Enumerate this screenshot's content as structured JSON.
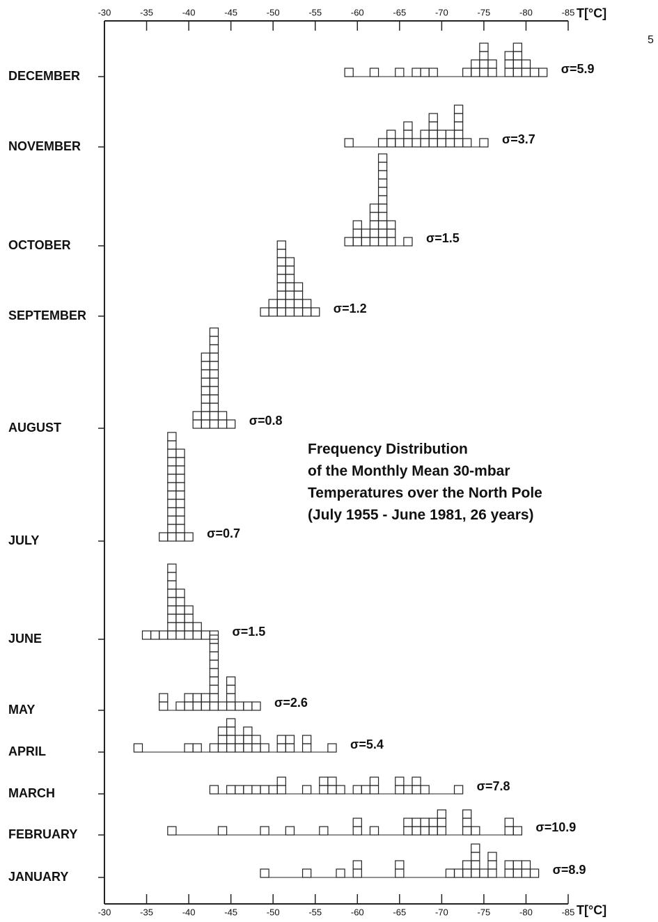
{
  "page_number": "5",
  "chart_data": {
    "type": "frequency-squares",
    "title": [
      "Frequency Distribution",
      "of the Monthly Mean 30-mbar",
      "Temperatures over the North Pole",
      "(July 1955 - June 1981, 26 years)"
    ],
    "x_label": "T[°C]",
    "xlim": [
      -30,
      -85
    ],
    "xticks": [
      -30,
      -35,
      -40,
      -45,
      -50,
      -55,
      -60,
      -65,
      -70,
      -75,
      -80,
      -85
    ],
    "color": "#222222",
    "series": [
      {
        "name": "DECEMBER",
        "sigma_label": "σ=5.9",
        "x": [
          -59,
          -62,
          -65,
          -67,
          -68,
          -69,
          -73,
          -74,
          -75,
          -76,
          -78,
          -79,
          -80,
          -81,
          -82
        ],
        "values": [
          1,
          1,
          1,
          1,
          1,
          1,
          1,
          2,
          4,
          2,
          3,
          4,
          2,
          1,
          1
        ]
      },
      {
        "name": "NOVEMBER",
        "sigma_label": "σ=3.7",
        "x": [
          -59,
          -63,
          -64,
          -65,
          -66,
          -67,
          -68,
          -69,
          -70,
          -71,
          -72,
          -73,
          -75
        ],
        "values": [
          1,
          1,
          2,
          1,
          3,
          1,
          2,
          4,
          2,
          2,
          5,
          1,
          1
        ]
      },
      {
        "name": "OCTOBER",
        "sigma_label": "σ=1.5",
        "x": [
          -59,
          -60,
          -61,
          -62,
          -63,
          -64,
          -66
        ],
        "values": [
          1,
          3,
          2,
          5,
          11,
          3,
          1
        ]
      },
      {
        "name": "SEPTEMBER",
        "sigma_label": "σ=1.2",
        "x": [
          -49,
          -50,
          -51,
          -52,
          -53,
          -54,
          -55
        ],
        "values": [
          1,
          2,
          9,
          7,
          4,
          2,
          1
        ]
      },
      {
        "name": "AUGUST",
        "sigma_label": "σ=0.8",
        "x": [
          -41,
          -42,
          -43,
          -44,
          -45
        ],
        "values": [
          2,
          9,
          12,
          2,
          1
        ]
      },
      {
        "name": "JULY",
        "sigma_label": "σ=0.7",
        "x": [
          -37,
          -38,
          -39,
          -40
        ],
        "values": [
          1,
          13,
          11,
          1
        ]
      },
      {
        "name": "JUNE",
        "sigma_label": "σ=1.5",
        "x": [
          -35,
          -36,
          -37,
          -38,
          -39,
          -40,
          -41,
          -42,
          -43
        ],
        "values": [
          1,
          1,
          1,
          9,
          6,
          4,
          2,
          1,
          1
        ]
      },
      {
        "name": "MAY",
        "sigma_label": "σ=2.6",
        "x": [
          -37,
          -39,
          -40,
          -41,
          -42,
          -43,
          -44,
          -45,
          -46,
          -47,
          -48
        ],
        "values": [
          2,
          1,
          2,
          2,
          2,
          9,
          1,
          4,
          1,
          1,
          1
        ]
      },
      {
        "name": "APRIL",
        "sigma_label": "σ=5.4",
        "x": [
          -34,
          -40,
          -41,
          -43,
          -44,
          -45,
          -46,
          -47,
          -48,
          -49,
          -51,
          -52,
          -54,
          -57
        ],
        "values": [
          1,
          1,
          1,
          1,
          3,
          4,
          2,
          3,
          2,
          1,
          2,
          2,
          2,
          1
        ]
      },
      {
        "name": "MARCH",
        "sigma_label": "σ=7.8",
        "x": [
          -43,
          -45,
          -46,
          -47,
          -48,
          -49,
          -50,
          -51,
          -54,
          -56,
          -57,
          -58,
          -60,
          -61,
          -62,
          -65,
          -66,
          -67,
          -68,
          -72
        ],
        "values": [
          1,
          1,
          1,
          1,
          1,
          1,
          1,
          2,
          1,
          2,
          2,
          1,
          1,
          1,
          2,
          2,
          1,
          2,
          1,
          1
        ]
      },
      {
        "name": "FEBRUARY",
        "sigma_label": "σ=10.9",
        "x": [
          -38,
          -44,
          -49,
          -52,
          -56,
          -60,
          -62,
          -66,
          -67,
          -68,
          -69,
          -70,
          -73,
          -74,
          -78,
          -79
        ],
        "values": [
          1,
          1,
          1,
          1,
          1,
          2,
          1,
          2,
          2,
          2,
          2,
          3,
          3,
          1,
          2,
          1
        ]
      },
      {
        "name": "JANUARY",
        "sigma_label": "σ=8.9",
        "x": [
          -49,
          -54,
          -58,
          -60,
          -65,
          -71,
          -72,
          -73,
          -74,
          -75,
          -76,
          -78,
          -79,
          -80,
          -81
        ],
        "values": [
          1,
          1,
          1,
          2,
          2,
          1,
          1,
          2,
          4,
          1,
          3,
          2,
          2,
          2,
          1
        ]
      }
    ]
  }
}
